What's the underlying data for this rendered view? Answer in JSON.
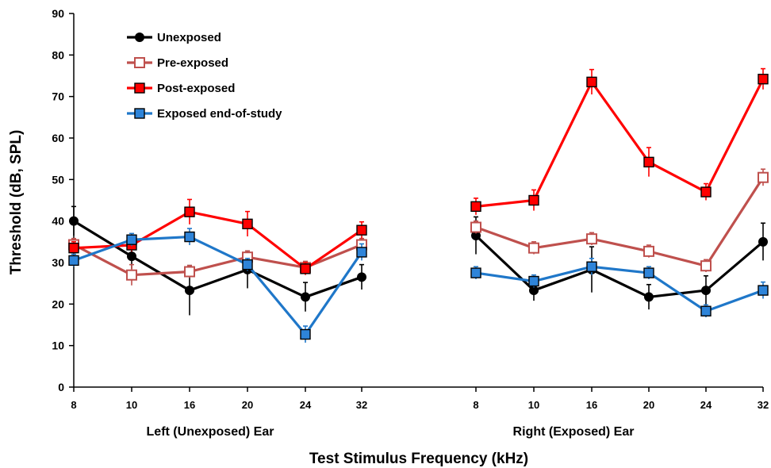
{
  "chart_data": {
    "type": "line",
    "title": "",
    "xlabel": "Test Stimulus Frequency (kHz)",
    "ylabel": "Threshold (dB, SPL)",
    "ylim": [
      0,
      90
    ],
    "yticks": [
      "0",
      "10",
      "20",
      "30",
      "40",
      "50",
      "60",
      "70",
      "80",
      "90"
    ],
    "grid": false,
    "legend_position": "top-left",
    "groups": [
      {
        "label": "Left (Unexposed) Ear",
        "categories": [
          "8",
          "10",
          "16",
          "20",
          "24",
          "32"
        ]
      },
      {
        "label": "Right (Exposed) Ear",
        "categories": [
          "8",
          "10",
          "16",
          "20",
          "24",
          "32"
        ]
      }
    ],
    "series": [
      {
        "name": "Unexposed",
        "color": "#000000",
        "marker": "circle-filled",
        "marker_fill": "#000000",
        "values": [
          [
            40,
            31.5,
            23.3,
            28.3,
            21.7,
            26.5
          ],
          [
            36.5,
            23.3,
            28.3,
            21.7,
            23.3,
            35
          ]
        ],
        "errors": [
          [
            3.5,
            3,
            6,
            4.5,
            3.5,
            3
          ],
          [
            4.5,
            2.5,
            5.5,
            3,
            3.5,
            4.5
          ]
        ]
      },
      {
        "name": "Pre-exposed",
        "color": "#bf504d",
        "marker": "square-open",
        "marker_fill": "#ffffff",
        "values": [
          [
            34.3,
            27,
            27.8,
            31.3,
            28.8,
            34.3
          ],
          [
            38.5,
            33.5,
            35.7,
            32.7,
            29.2,
            50.5
          ]
        ],
        "errors": [
          [
            1.5,
            2.5,
            1.5,
            1.5,
            1.5,
            1.5
          ],
          [
            1.5,
            1.5,
            1.5,
            1.5,
            1.5,
            2
          ]
        ]
      },
      {
        "name": "Post-exposed",
        "color": "#ff0000",
        "marker": "square-filled",
        "marker_fill": "#ff0000",
        "values": [
          [
            33.5,
            34.2,
            42.2,
            39.3,
            28.5,
            37.8
          ],
          [
            43.5,
            45,
            73.5,
            54.2,
            47,
            74.2
          ]
        ],
        "errors": [
          [
            1.5,
            1.5,
            3,
            3,
            1.5,
            2
          ],
          [
            2,
            2.5,
            3,
            3.5,
            2,
            2.5
          ]
        ]
      },
      {
        "name": "Exposed end-of-study",
        "color": "#1f77c9",
        "marker": "square-filled",
        "marker_fill": "#2e84d9",
        "values": [
          [
            30.5,
            35.5,
            36.2,
            29.5,
            12.7,
            32.5
          ],
          [
            27.5,
            25.5,
            29,
            27.5,
            18.3,
            23.3
          ]
        ],
        "errors": [
          [
            1.5,
            1.5,
            2,
            1.5,
            2,
            2
          ],
          [
            1.5,
            1.5,
            2,
            1.5,
            1.5,
            2
          ]
        ]
      }
    ]
  }
}
